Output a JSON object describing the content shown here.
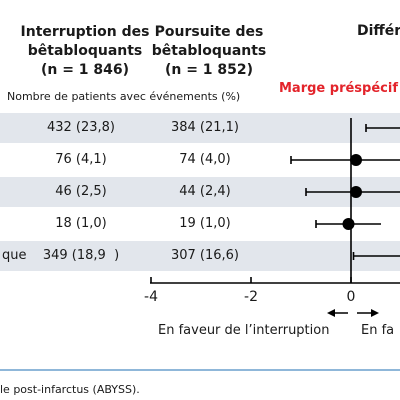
{
  "figure": {
    "col1_header": "Interruption des\nbêtabloquants\n(n = 1 846)",
    "col2_header": "Poursuite des\nbêtabloquants\n(n = 1 852)",
    "diff_header": "Différ",
    "subheader": "Nombre de patients avec événements (%)",
    "margin_label": "Marge préspécif",
    "favor_left": "En faveur de l’interruption",
    "favor_right": "En fa",
    "caption": "le post-infarctus (ABYSS)."
  },
  "colors": {
    "band": "#e2e6ec",
    "margin_label": "#e3242b",
    "point": "#000000",
    "divider": "#8fb7d9"
  },
  "chart_data": {
    "type": "forest",
    "x_ticks": [
      "-4",
      "-2",
      "0"
    ],
    "xlim": [
      -4.5,
      2.1
    ],
    "rows": [
      {
        "label": "",
        "interruption": "432 (23,8)",
        "poursuite": "384 (21,1)",
        "estimate": null,
        "ci_low": 0.3,
        "ci_high": null
      },
      {
        "label": "",
        "interruption": "76 (4,1)",
        "poursuite": "74 (4,0)",
        "estimate": 0.1,
        "ci_low": -1.2,
        "ci_high": 1.4
      },
      {
        "label": "",
        "interruption": "46 (2,5)",
        "poursuite": "44 (2,4)",
        "estimate": 0.1,
        "ci_low": -0.9,
        "ci_high": 1.1
      },
      {
        "label": "",
        "interruption": "18 (1,0)",
        "poursuite": "19 (1,0)",
        "estimate": -0.05,
        "ci_low": -0.7,
        "ci_high": 0.6
      },
      {
        "label": "que",
        "interruption": "349 (18,9  )",
        "poursuite": "307 (16,6)",
        "estimate": null,
        "ci_low": 0.05,
        "ci_high": null
      }
    ]
  }
}
